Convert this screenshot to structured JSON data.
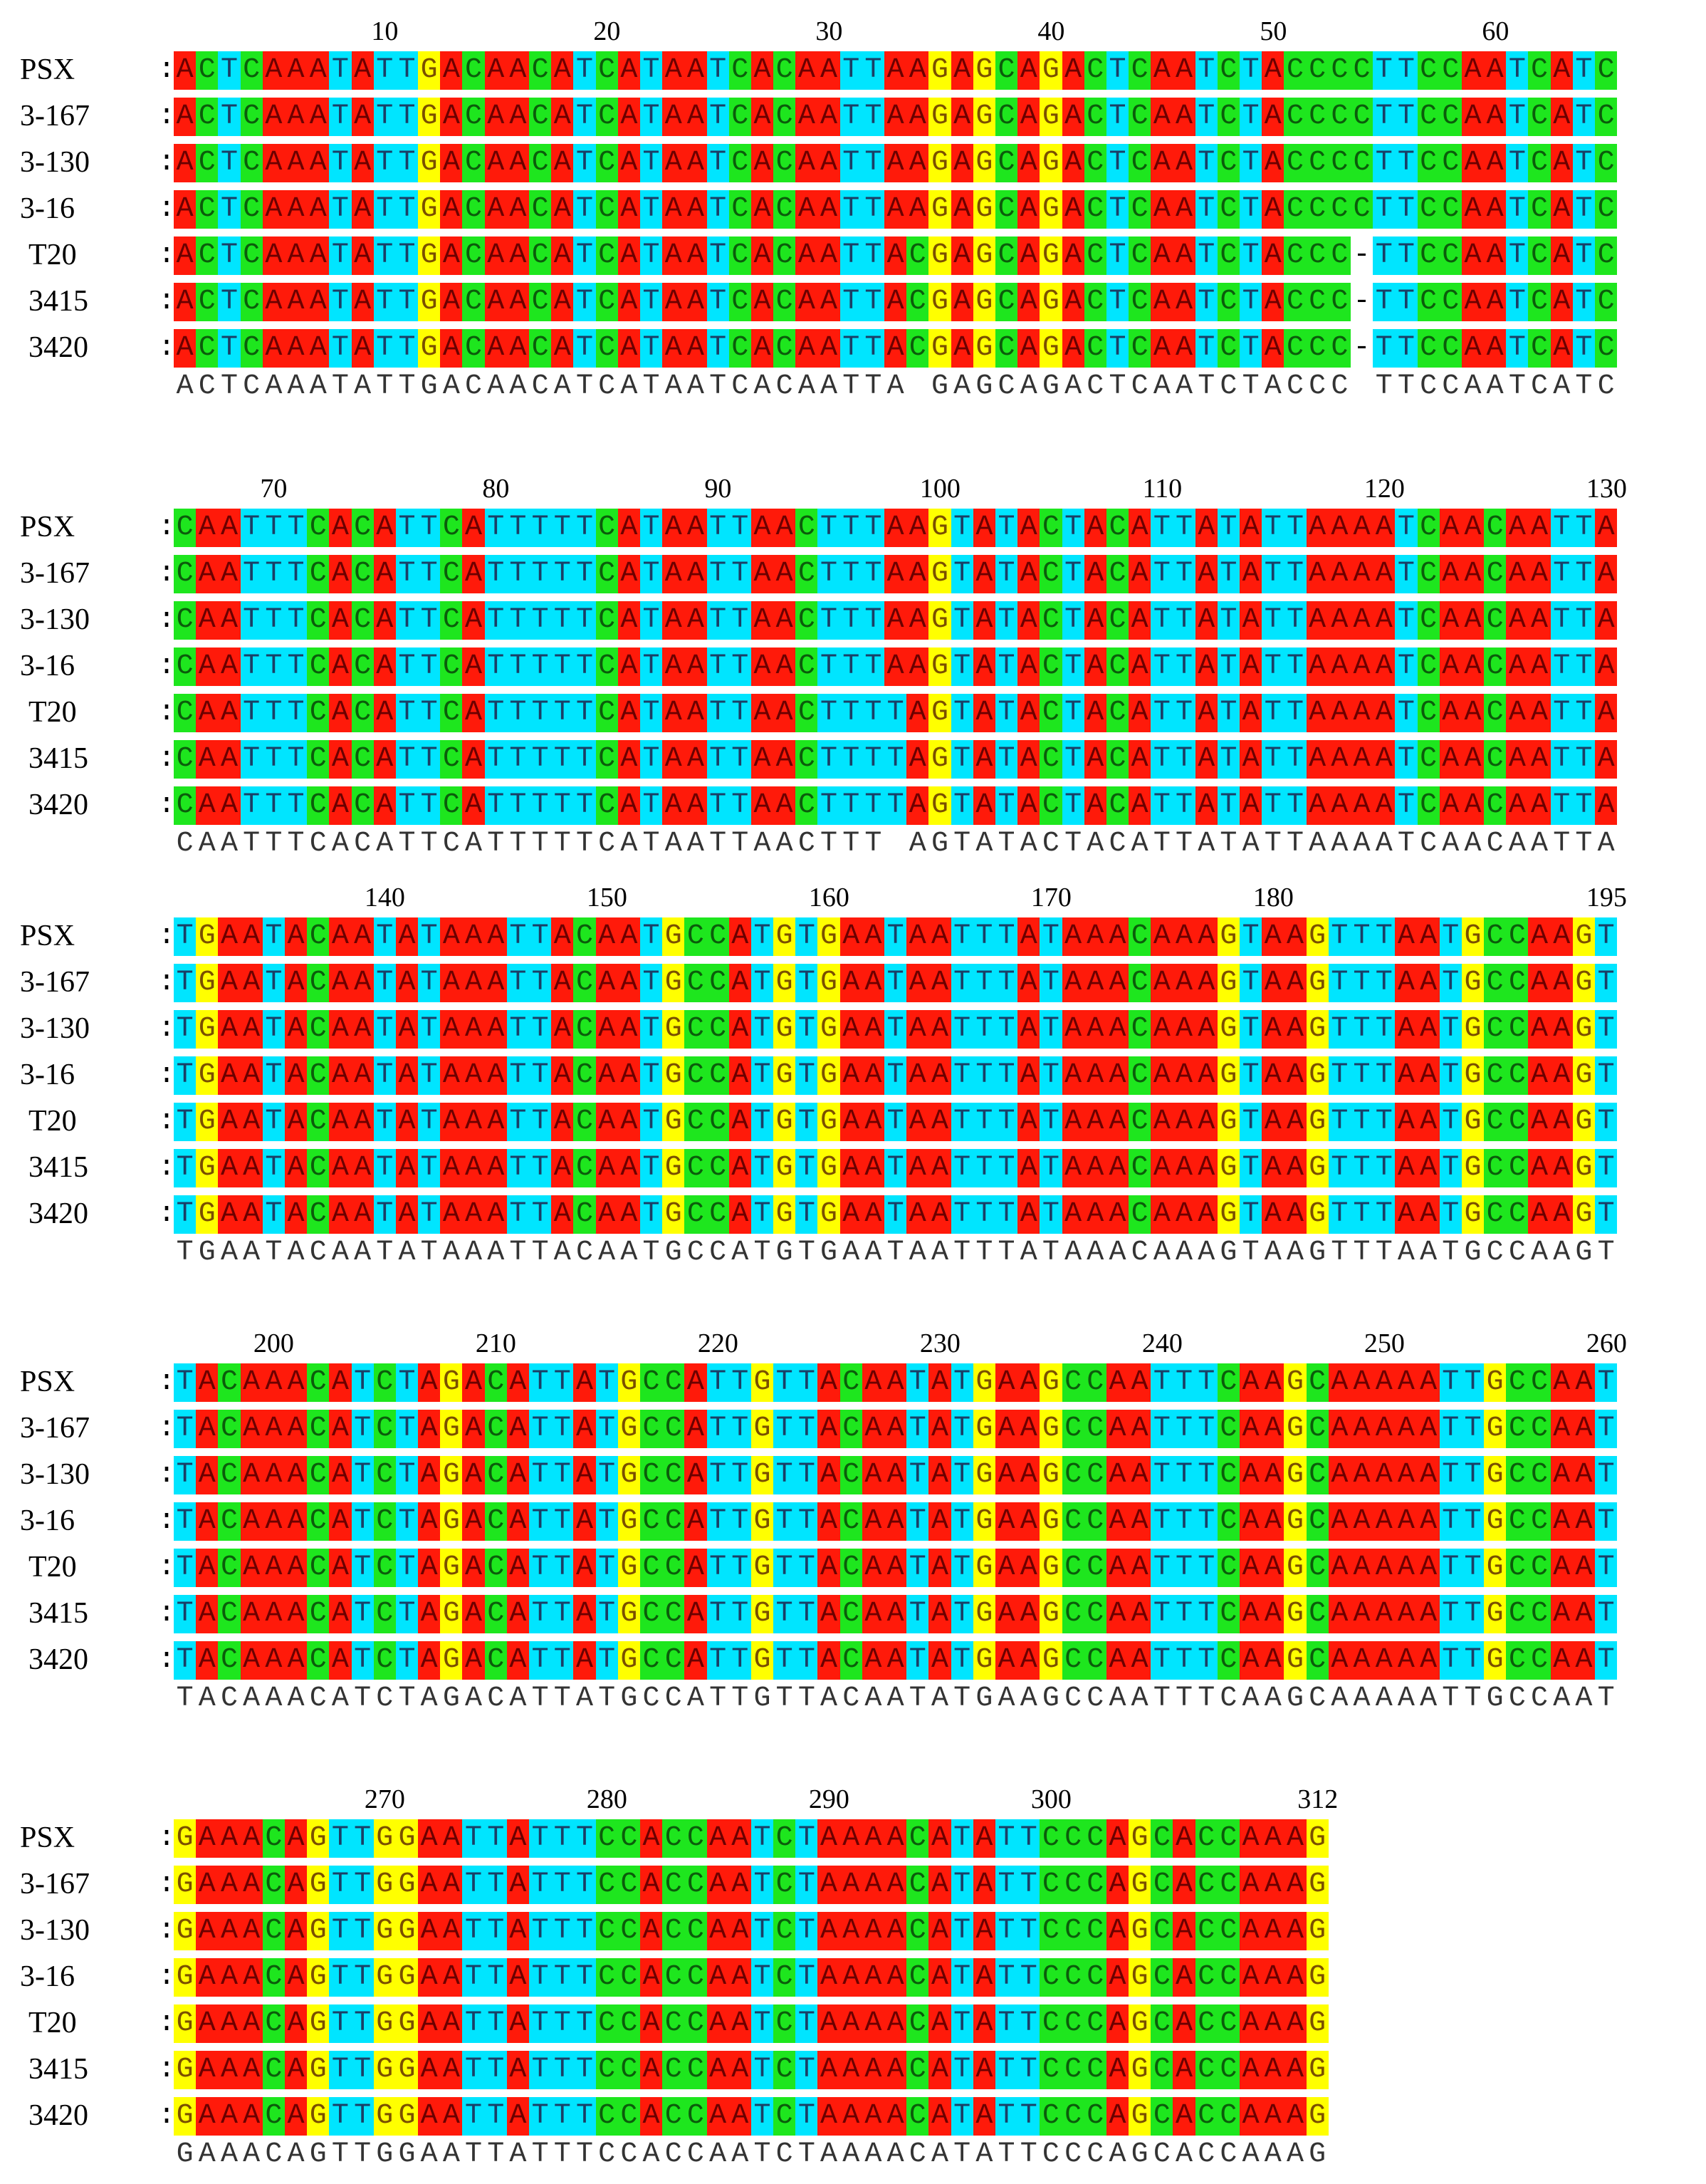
{
  "sequence_names": [
    "PSX",
    "3-167",
    "3-130",
    "3-16",
    "T20",
    "3415",
    "3420"
  ],
  "colon": ":",
  "gap_char": "-",
  "colors": {
    "A": "#ff1a0a",
    "C": "#1ee61e",
    "T": "#00e5ff",
    "G": "#ffff00",
    "gap": "#ffffff"
  },
  "blocks": [
    {
      "ruler": [
        "10",
        "20",
        "30",
        "40",
        "50",
        "60"
      ],
      "ruler_positions": [
        10,
        20,
        30,
        40,
        50,
        60
      ],
      "length": 65,
      "rows": [
        "ACTCAAATATTGACAACATCATAATCACAATTAAGAGCAGACTCAATCTACCCCTTCCAATCATC",
        "ACTCAAATATTGACAACATCATAATCACAATTAAGAGCAGACTCAATCTACCCCTTCCAATCATC",
        "ACTCAAATATTGACAACATCATAATCACAATTAAGAGCAGACTCAATCTACCCCTTCCAATCATC",
        "ACTCAAATATTGACAACATCATAATCACAATTAAGAGCAGACTCAATCTACCCCTTCCAATCATC",
        "ACTCAAATATTGACAACATCATAATCACAATTACGAGCAGACTCAATCTACCC-TTCCAATCATC",
        "ACTCAAATATTGACAACATCATAATCACAATTACGAGCAGACTCAATCTACCC-TTCCAATCATC",
        "ACTCAAATATTGACAACATCATAATCACAATTACGAGCAGACTCAATCTACCC-TTCCAATCATC"
      ],
      "consensus": "ACTCAAATATTGACAACATCATAATCACAATTA GAGCAGACTCAATCTACCC TTCCAATCATC"
    },
    {
      "ruler": [
        "70",
        "80",
        "90",
        "100",
        "110",
        "120",
        "130"
      ],
      "ruler_positions": [
        5,
        15,
        25,
        35,
        45,
        55,
        65
      ],
      "length": 65,
      "rows": [
        "CAATTTCACATTCATTTTTCATAATTAACTTTAAGTATACTACATTATATTAAAATCAACAATTA",
        "CAATTTCACATTCATTTTTCATAATTAACTTTAAGTATACTACATTATATTAAAATCAACAATTA",
        "CAATTTCACATTCATTTTTCATAATTAACTTTAAGTATACTACATTATATTAAAATCAACAATTA",
        "CAATTTCACATTCATTTTTCATAATTAACTTTAAGTATACTACATTATATTAAAATCAACAATTA",
        "CAATTTCACATTCATTTTTCATAATTAACTTTTAGTATACTACATTATATTAAAATCAACAATTA",
        "CAATTTCACATTCATTTTTCATAATTAACTTTTAGTATACTACATTATATTAAAATCAACAATTA",
        "CAATTTCACATTCATTTTTCATAATTAACTTTTAGTATACTACATTATATTAAAATCAACAATTA"
      ],
      "consensus": "CAATTTCACATTCATTTTTCATAATTAACTTT AGTATACTACATTATATTAAAATCAACAATTA"
    },
    {
      "ruler": [
        "140",
        "150",
        "160",
        "170",
        "180",
        "195"
      ],
      "ruler_positions": [
        10,
        20,
        30,
        40,
        50,
        65
      ],
      "length": 65,
      "rows": [
        "TGAATACAATATAAATTACAATGCCATGTGAATAATTTATAAACAAAGTAAGTTTAATGCCAAGT",
        "TGAATACAATATAAATTACAATGCCATGTGAATAATTTATAAACAAAGTAAGTTTAATGCCAAGT",
        "TGAATACAATATAAATTACAATGCCATGTGAATAATTTATAAACAAAGTAAGTTTAATGCCAAGT",
        "TGAATACAATATAAATTACAATGCCATGTGAATAATTTATAAACAAAGTAAGTTTAATGCCAAGT",
        "TGAATACAATATAAATTACAATGCCATGTGAATAATTTATAAACAAAGTAAGTTTAATGCCAAGT",
        "TGAATACAATATAAATTACAATGCCATGTGAATAATTTATAAACAAAGTAAGTTTAATGCCAAGT",
        "TGAATACAATATAAATTACAATGCCATGTGAATAATTTATAAACAAAGTAAGTTTAATGCCAAGT"
      ],
      "consensus": "TGAATACAATATAAATTACAATGCCATGTGAATAATTTATAAACAAAGTAAGTTTAATGCCAAGT"
    },
    {
      "ruler": [
        "200",
        "210",
        "220",
        "230",
        "240",
        "250",
        "260"
      ],
      "ruler_positions": [
        5,
        15,
        25,
        35,
        45,
        55,
        65
      ],
      "length": 65,
      "rows": [
        "TACAAACATCTAGACATTATGCCATTGTTACAATATGAAGCCAATTTCAAGCAAAAATTGCCAAT",
        "TACAAACATCTAGACATTATGCCATTGTTACAATATGAAGCCAATTTCAAGCAAAAATTGCCAAT",
        "TACAAACATCTAGACATTATGCCATTGTTACAATATGAAGCCAATTTCAAGCAAAAATTGCCAAT",
        "TACAAACATCTAGACATTATGCCATTGTTACAATATGAAGCCAATTTCAAGCAAAAATTGCCAAT",
        "TACAAACATCTAGACATTATGCCATTGTTACAATATGAAGCCAATTTCAAGCAAAAATTGCCAAT",
        "TACAAACATCTAGACATTATGCCATTGTTACAATATGAAGCCAATTTCAAGCAAAAATTGCCAAT",
        "TACAAACATCTAGACATTATGCCATTGTTACAATATGAAGCCAATTTCAAGCAAAAATTGCCAAT"
      ],
      "consensus": "TACAAACATCTAGACATTATGCCATTGTTACAATATGAAGCCAATTTCAAGCAAAAATTGCCAAT"
    },
    {
      "ruler": [
        "270",
        "280",
        "290",
        "300",
        "312"
      ],
      "ruler_positions": [
        10,
        20,
        30,
        40,
        52
      ],
      "length": 52,
      "rows": [
        "GAAACAGTTGGAATTATTTCCACCAATCTAAAACATATTCCCAGCACCAAAG",
        "GAAACAGTTGGAATTATTTCCACCAATCTAAAACATATTCCCAGCACCAAAG",
        "GAAACAGTTGGAATTATTTCCACCAATCTAAAACATATTCCCAGCACCAAAG",
        "GAAACAGTTGGAATTATTTCCACCAATCTAAAACATATTCCCAGCACCAAAG",
        "GAAACAGTTGGAATTATTTCCACCAATCTAAAACATATTCCCAGCACCAAAG",
        "GAAACAGTTGGAATTATTTCCACCAATCTAAAACATATTCCCAGCACCAAAG",
        "GAAACAGTTGGAATTATTTCCACCAATCTAAAACATATTCCCAGCACCAAAG"
      ],
      "consensus": "GAAACAGTTGGAATTATTTCCACCAATCTAAAACATATTCCCAGCACCAAAG"
    }
  ]
}
